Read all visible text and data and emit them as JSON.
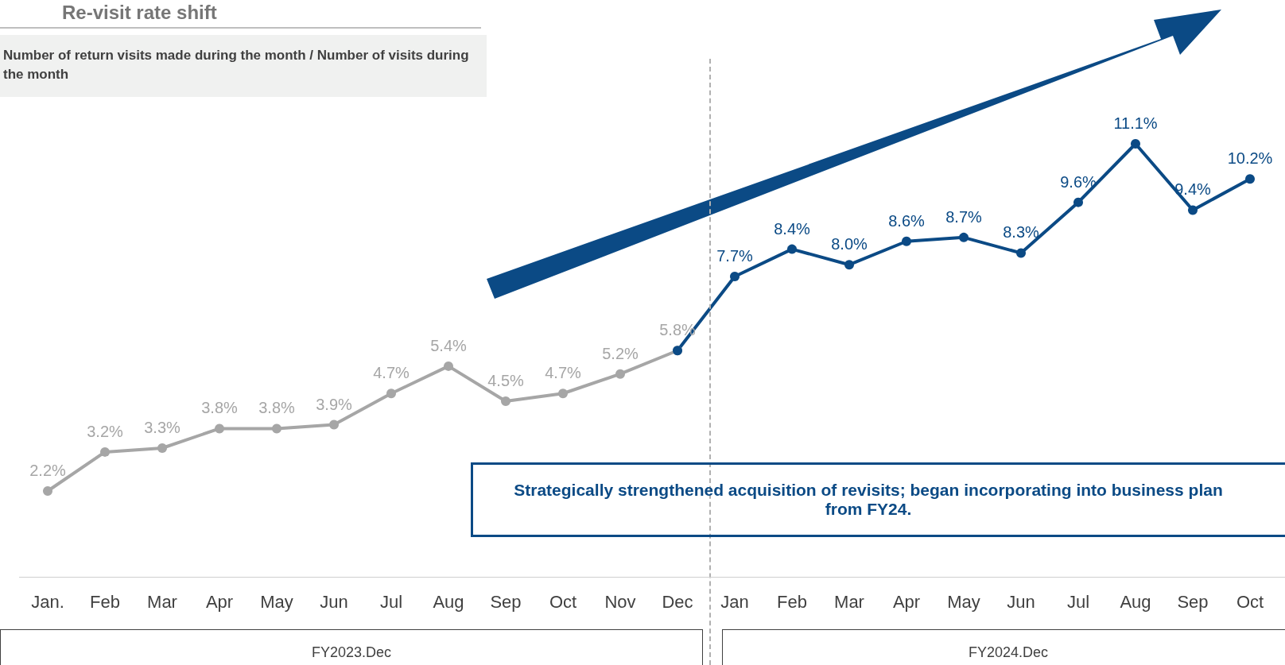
{
  "chart_data": {
    "type": "line",
    "title": "Re-visit rate shift",
    "subtitle": "Number of return visits made during the month / Number of  visits  during the month",
    "categories": [
      "Jan.",
      "Feb",
      "Mar",
      "Apr",
      "May",
      "Jun",
      "Jul",
      "Aug",
      "Sep",
      "Oct",
      "Nov",
      "Dec",
      "Jan",
      "Feb",
      "Mar",
      "Apr",
      "May",
      "Jun",
      "Jul",
      "Aug",
      "Sep",
      "Oct"
    ],
    "series": [
      {
        "color": "#a6a6a6",
        "values": [
          2.2,
          3.2,
          3.3,
          3.8,
          3.8,
          3.9,
          4.7,
          5.4,
          4.5,
          4.7,
          5.2,
          5.8,
          null,
          null,
          null,
          null,
          null,
          null,
          null,
          null,
          null,
          null
        ],
        "value_labels": [
          "2.2%",
          "3.2%",
          "3.3%",
          "3.8%",
          "3.8%",
          "3.9%",
          "4.7%",
          "5.4%",
          "4.5%",
          "4.7%",
          "5.2%",
          "5.8%",
          null,
          null,
          null,
          null,
          null,
          null,
          null,
          null,
          null,
          null
        ]
      },
      {
        "color": "#0b4a85",
        "values": [
          null,
          null,
          null,
          null,
          null,
          null,
          null,
          null,
          null,
          null,
          null,
          5.8,
          7.7,
          8.4,
          8.0,
          8.6,
          8.7,
          8.3,
          9.6,
          11.1,
          9.4,
          10.2
        ],
        "value_labels": [
          null,
          null,
          null,
          null,
          null,
          null,
          null,
          null,
          null,
          null,
          null,
          null,
          "7.7%",
          "8.4%",
          "8.0%",
          "8.6%",
          "8.7%",
          "8.3%",
          "9.6%",
          "11.1%",
          "9.4%",
          "10.2%"
        ]
      }
    ],
    "annotations": [
      "Strategically strengthened acquisition of revisits; began incorporating into business plan from FY24.",
      "FY2023.Dec",
      "FY2024.Dec"
    ],
    "marker": "circle",
    "line_style": "solid",
    "grid": false
  }
}
